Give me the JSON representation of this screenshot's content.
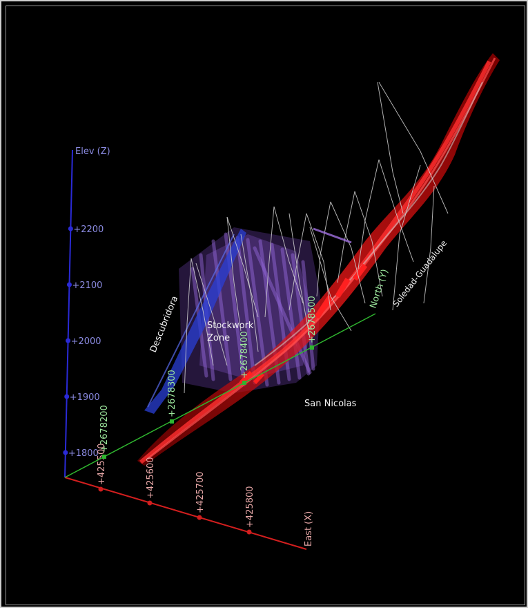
{
  "axes": {
    "elevation": {
      "label": "Elev (Z)",
      "color": "#2a2ad6",
      "label_color": "#8a8ae0",
      "ticks": [
        "+1800",
        "+1900",
        "+2000",
        "+2100",
        "+2200"
      ]
    },
    "east": {
      "label": "East (X)",
      "color": "#d21e1e",
      "label_color": "#e8a8a8",
      "ticks": [
        "+425500",
        "+425600",
        "+425700",
        "+425800"
      ]
    },
    "north": {
      "label": "North (Y)",
      "color": "#2fb52f",
      "label_color": "#9de89d",
      "ticks": [
        "+2678200",
        "+2678300",
        "+2678400",
        "+2678500"
      ]
    }
  },
  "labels": {
    "descubridora": "Descubridora",
    "stockwork_line1": "Stockwork",
    "stockwork_line2": "Zone",
    "san_nicolas": "San Nicolas",
    "soledad_guadalupe": "Soledad-Guadalupe"
  },
  "colors": {
    "background": "#000000",
    "vein_red": "#e01010",
    "vein_blue": "#2a3fd6",
    "stockwork_purple": "#8a5ad0",
    "drillhole_gray": "#cfcfcf"
  }
}
